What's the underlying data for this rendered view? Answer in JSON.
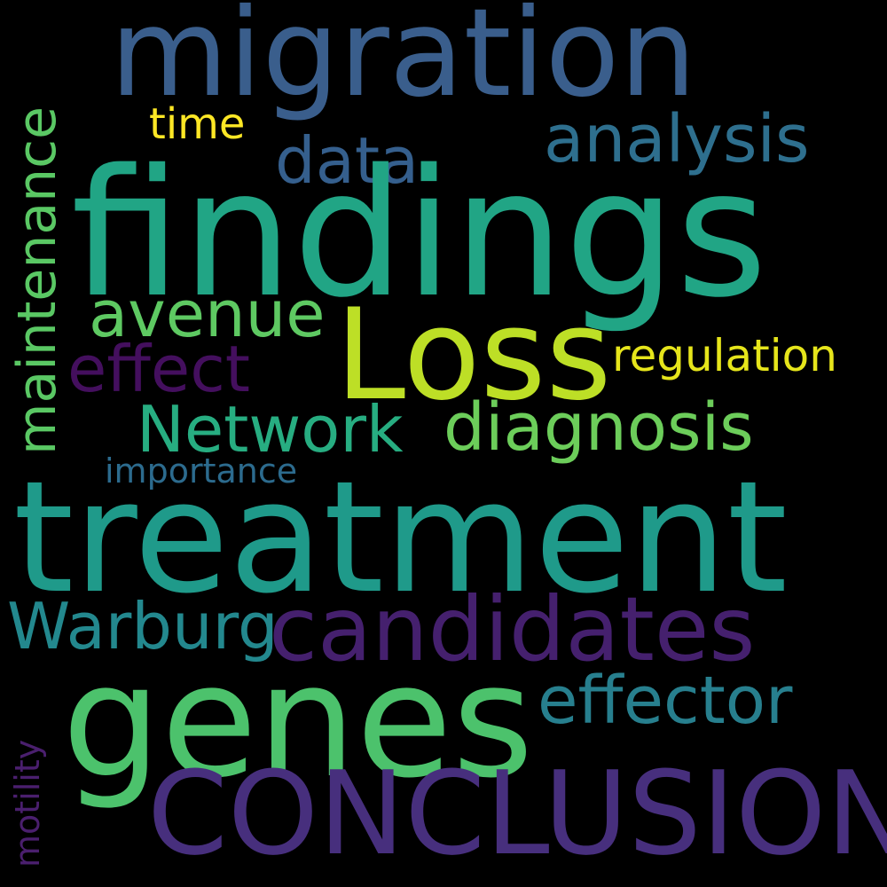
{
  "words": {
    "findings": {
      "text": "findings",
      "color": "#21a585"
    },
    "treatment": {
      "text": "treatment",
      "color": "#1f9a8a"
    },
    "genes": {
      "text": "genes",
      "color": "#4cc26c"
    },
    "conclusion": {
      "text": "CONCLUSION",
      "color": "#472f7d"
    },
    "migration": {
      "text": "migration",
      "color": "#3a5e8c"
    },
    "loss": {
      "text": "Loss",
      "color": "#bddf26"
    },
    "candidates": {
      "text": "candidates",
      "color": "#45206e"
    },
    "maintenance": {
      "text": "maintenance",
      "color": "#5ac864"
    },
    "diagnosis": {
      "text": "diagnosis",
      "color": "#6ccd5a"
    },
    "network": {
      "text": "Network",
      "color": "#27ad81"
    },
    "analysis": {
      "text": "analysis",
      "color": "#2e6f8e"
    },
    "effector": {
      "text": "effector",
      "color": "#277f8e"
    },
    "warburg": {
      "text": "Warburg",
      "color": "#23888e"
    },
    "avenue": {
      "text": "avenue",
      "color": "#5ec962"
    },
    "effect": {
      "text": "effect",
      "color": "#440f5e"
    },
    "data": {
      "text": "data",
      "color": "#355f8d"
    },
    "regulation": {
      "text": "regulation",
      "color": "#e6e51b"
    },
    "time": {
      "text": "time",
      "color": "#fde725"
    },
    "importance": {
      "text": "importance",
      "color": "#2c6b8e"
    },
    "motility": {
      "text": "motility",
      "color": "#4a1f6e"
    }
  }
}
